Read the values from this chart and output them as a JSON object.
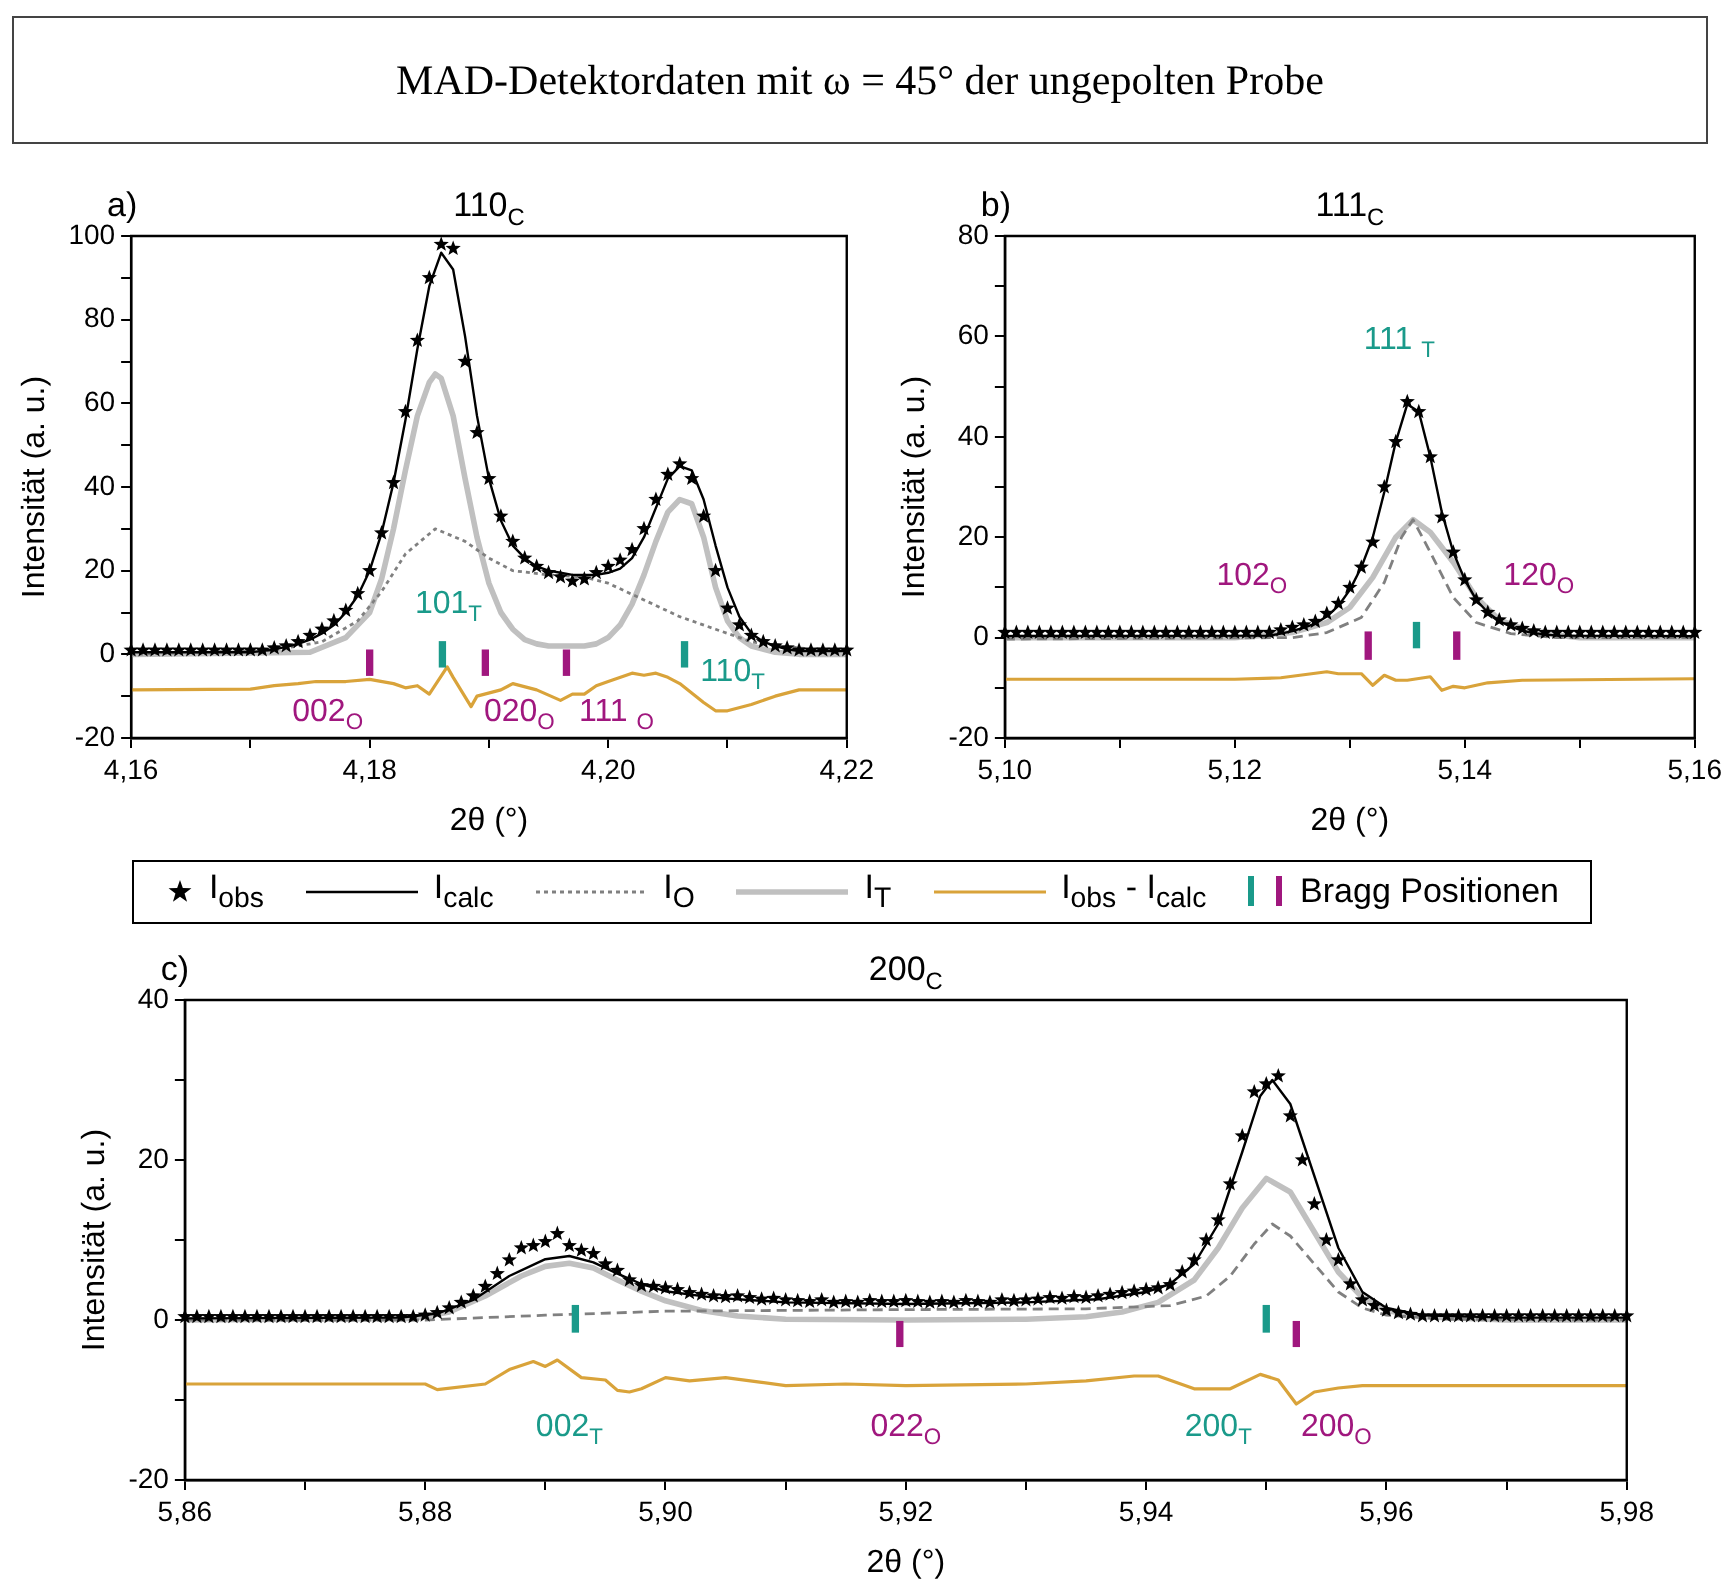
{
  "chart_data": [
    {
      "type": "line",
      "title": "MAD-Detektordaten mit ω = 45° der ungepolten Probe",
      "subtitle": "110$_{C}$",
      "xlabel": "2θ (°)",
      "ylabel": "Intensität (a. u.)",
      "legend": "bottom",
      "annotations": [
        "a)",
        {
          "text": "002$_{O}$",
          "x": 4.18,
          "y": -5
        },
        {
          "text": "101$_{T}$",
          "x": 4.1861,
          "y": -3
        },
        {
          "text": "020$_{O}$",
          "x": 4.1897,
          "y": -5
        },
        {
          "text": "111 $_{O}$",
          "x": 4.1965,
          "y": -5
        },
        {
          "text": "110$_{T}$",
          "x": 4.2064,
          "y": -3
        }
      ],
      "xlim": [
        4.16,
        4.22
      ],
      "ylim": [
        -20,
        100
      ],
      "xticks": [
        {
          "value": 4.16,
          "label": "4,16"
        },
        {
          "value": 4.17,
          "label": null
        },
        {
          "value": 4.18,
          "label": "4,18"
        },
        {
          "value": 4.19,
          "label": null
        },
        {
          "value": 4.2,
          "label": "4,20"
        },
        {
          "value": 4.21,
          "label": null
        },
        {
          "value": 4.22,
          "label": "4,22"
        }
      ],
      "yticks": [
        -20,
        {
          "value": -10,
          "label": null
        },
        0,
        {
          "value": 10,
          "label": null
        },
        20,
        {
          "value": 30,
          "label": null
        },
        40,
        {
          "value": 50,
          "label": null
        },
        60,
        {
          "value": 70,
          "label": null
        },
        80,
        {
          "value": 90,
          "label": null
        },
        100
      ],
      "series": [
        {
          "name": "I$_{obs}$",
          "type": "scatter",
          "marker": "star",
          "color": "#000000",
          "x": [
            4.16,
            4.161,
            4.162,
            4.163,
            4.164,
            4.165,
            4.166,
            4.167,
            4.168,
            4.169,
            4.17,
            4.171,
            4.172,
            4.173,
            4.174,
            4.175,
            4.176,
            4.177,
            4.178,
            4.179,
            4.18,
            4.181,
            4.182,
            4.183,
            4.184,
            4.185,
            4.186,
            4.187,
            4.188,
            4.189,
            4.19,
            4.191,
            4.192,
            4.193,
            4.194,
            4.195,
            4.196,
            4.197,
            4.198,
            4.199,
            4.2,
            4.201,
            4.202,
            4.203,
            4.204,
            4.205,
            4.206,
            4.207,
            4.208,
            4.209,
            4.21,
            4.211,
            4.212,
            4.213,
            4.214,
            4.215,
            4.216,
            4.217,
            4.218,
            4.219,
            4.22
          ],
          "values": [
            1,
            1,
            1,
            1,
            1,
            1,
            1,
            1,
            1,
            1,
            1,
            1,
            1.5,
            2,
            3,
            4.5,
            6,
            8,
            10.5,
            14.5,
            20,
            29,
            41,
            58,
            75,
            90,
            98,
            97,
            70,
            53,
            42,
            33,
            27,
            23,
            21,
            19.5,
            18.5,
            17.5,
            18,
            19.5,
            21,
            22.5,
            25,
            30,
            37,
            43,
            45.5,
            42,
            33,
            20,
            11,
            7,
            4.5,
            3,
            2,
            1.5,
            1,
            1,
            1,
            1,
            1
          ]
        },
        {
          "name": "I$_{calc}$",
          "line_style": "solid",
          "color": "#000000",
          "x": [
            4.16,
            4.17,
            4.171,
            4.172,
            4.173,
            4.174,
            4.175,
            4.176,
            4.177,
            4.178,
            4.179,
            4.18,
            4.181,
            4.182,
            4.183,
            4.184,
            4.185,
            4.186,
            4.187,
            4.188,
            4.189,
            4.19,
            4.191,
            4.192,
            4.193,
            4.194,
            4.195,
            4.196,
            4.197,
            4.198,
            4.199,
            4.2,
            4.201,
            4.202,
            4.203,
            4.204,
            4.205,
            4.206,
            4.207,
            4.208,
            4.209,
            4.21,
            4.211,
            4.212,
            4.213,
            4.214,
            4.215,
            4.216,
            4.22
          ],
          "values": [
            0.5,
            0.5,
            0.8,
            1.2,
            1.8,
            2.5,
            3.5,
            5,
            7,
            10,
            14,
            20,
            29,
            41,
            56,
            73,
            88,
            96,
            92,
            76,
            57,
            42,
            32,
            26,
            23,
            21,
            20,
            19.5,
            19,
            19,
            19,
            19.5,
            20.5,
            23,
            28,
            35,
            42,
            45,
            44,
            37,
            26,
            16,
            9,
            5,
            3,
            2,
            1.2,
            0.8,
            0.8
          ]
        },
        {
          "name": "I$_{O}$",
          "line_style": "dotted",
          "color": "#808080",
          "x": [
            4.16,
            4.172,
            4.176,
            4.179,
            4.181,
            4.183,
            4.1855,
            4.188,
            4.19,
            4.192,
            4.195,
            4.198,
            4.2,
            4.203,
            4.206,
            4.209,
            4.212,
            4.216,
            4.22
          ],
          "values": [
            0,
            1,
            3,
            8,
            15,
            24,
            30,
            27,
            23,
            20,
            19,
            18.5,
            17,
            13,
            9,
            6,
            3,
            1.5,
            1
          ]
        },
        {
          "name": "I$_{T}$",
          "line_style": "solid",
          "color": "#c0c0c0",
          "x": [
            4.16,
            4.175,
            4.178,
            4.18,
            4.181,
            4.182,
            4.183,
            4.184,
            4.185,
            4.1855,
            4.186,
            4.187,
            4.188,
            4.189,
            4.19,
            4.191,
            4.192,
            4.193,
            4.194,
            4.195,
            4.198,
            4.199,
            4.2,
            4.201,
            4.202,
            4.203,
            4.204,
            4.205,
            4.206,
            4.207,
            4.208,
            4.209,
            4.21,
            4.211,
            4.212,
            4.214,
            4.216,
            4.22
          ],
          "values": [
            0,
            0.5,
            4,
            10,
            18,
            30,
            44,
            57,
            65,
            67,
            66,
            57,
            42,
            28,
            17,
            10,
            6,
            3.5,
            2.5,
            2,
            2,
            2.5,
            4,
            7,
            12,
            19,
            27,
            34,
            37,
            36,
            28,
            16,
            8,
            4,
            2,
            0.5,
            0,
            0
          ]
        },
        {
          "name": "I$_{obs}$ - I$_{calc}$",
          "line_style": "solid",
          "color": "#d9a33a",
          "x": [
            4.16,
            4.17,
            4.172,
            4.174,
            4.1755,
            4.178,
            4.18,
            4.182,
            4.183,
            4.184,
            4.185,
            4.1865,
            4.187,
            4.1885,
            4.189,
            4.191,
            4.192,
            4.194,
            4.196,
            4.197,
            4.198,
            4.199,
            4.2,
            4.202,
            4.203,
            4.204,
            4.205,
            4.206,
            4.208,
            4.209,
            4.21,
            4.212,
            4.214,
            4.216,
            4.22
          ],
          "values": [
            -8.5,
            -8.3,
            -7.5,
            -7,
            -6.5,
            -6.5,
            -6,
            -7,
            -8,
            -7.5,
            -9.5,
            -3,
            -5.5,
            -12.5,
            -10,
            -8.5,
            -7,
            -8.5,
            -11,
            -9.5,
            -9.5,
            -7.5,
            -6.5,
            -4.5,
            -5,
            -4.5,
            -5.5,
            -7,
            -11.5,
            -13.5,
            -13.5,
            -12,
            -10,
            -8.5,
            -8.5
          ]
        },
        {
          "type": "bar",
          "color": "#1a9a8a",
          "x": [
            4.1861,
            4.2064
          ],
          "base": [
            -3,
            -3
          ],
          "values": [
            6,
            6
          ]
        },
        {
          "name": "Bragg Positionen",
          "type": "bar",
          "color": "#a0177e",
          "x": [
            4.18,
            4.1897,
            4.1965
          ],
          "base": [
            -5,
            -5,
            -5
          ],
          "values": [
            6,
            6,
            6
          ]
        }
      ]
    },
    {
      "type": "line",
      "subtitle": "111$_{C}$",
      "xlabel": "2θ (°)",
      "ylabel": "Intensität (a. u.)",
      "annotations": [
        "b)",
        "111 $_{T}$",
        "102$_{O}$",
        {
          "text": "120$_{O}$",
          "x": 5.1393,
          "y": -4.3
        }
      ],
      "xlim": [
        5.1,
        5.16
      ],
      "ylim": [
        -20,
        80
      ],
      "xticks": [
        {
          "value": 5.1,
          "label": "5,10"
        },
        {
          "value": 5.11,
          "label": null
        },
        {
          "value": 5.12,
          "label": "5,12"
        },
        {
          "value": 5.13,
          "label": null
        },
        {
          "value": 5.14,
          "label": "5,14"
        },
        {
          "value": 5.15,
          "label": null
        },
        {
          "value": 5.16,
          "label": "5,16"
        }
      ],
      "yticks": [
        -20,
        {
          "value": -10,
          "label": null
        },
        0,
        {
          "value": 10,
          "label": null
        },
        20,
        {
          "value": 30,
          "label": null
        },
        40,
        {
          "value": 50,
          "label": null
        },
        60,
        {
          "value": 70,
          "label": null
        },
        80
      ],
      "series": [
        {
          "type": "scatter",
          "marker": "star",
          "color": "#000000",
          "x": [
            5.1,
            5.101,
            5.102,
            5.103,
            5.104,
            5.105,
            5.106,
            5.107,
            5.108,
            5.109,
            5.11,
            5.111,
            5.112,
            5.113,
            5.114,
            5.115,
            5.116,
            5.117,
            5.118,
            5.119,
            5.12,
            5.121,
            5.122,
            5.123,
            5.124,
            5.125,
            5.126,
            5.127,
            5.128,
            5.129,
            5.13,
            5.131,
            5.132,
            5.133,
            5.134,
            5.135,
            5.136,
            5.137,
            5.138,
            5.139,
            5.14,
            5.141,
            5.142,
            5.143,
            5.144,
            5.145,
            5.146,
            5.147,
            5.148,
            5.149,
            5.15,
            5.151,
            5.152,
            5.153,
            5.154,
            5.155,
            5.156,
            5.157,
            5.158,
            5.159,
            5.16
          ],
          "values": [
            1,
            1,
            1,
            1,
            1,
            1,
            1,
            1,
            1,
            1,
            1,
            1,
            1,
            1,
            1,
            1,
            1,
            1,
            1,
            1,
            1,
            1,
            1,
            1,
            1.5,
            2,
            2.5,
            3.2,
            4.8,
            6.8,
            10,
            14,
            19,
            30,
            39,
            47,
            45,
            36,
            24,
            17,
            11.5,
            7.5,
            5,
            3.5,
            2.5,
            1.8,
            1.3,
            1,
            1,
            1,
            1,
            1,
            1,
            1,
            1,
            1,
            1,
            1,
            1,
            1,
            1
          ]
        },
        {
          "line_style": "solid",
          "color": "#000000",
          "x": [
            5.1,
            5.123,
            5.124,
            5.125,
            5.126,
            5.127,
            5.128,
            5.129,
            5.13,
            5.131,
            5.132,
            5.133,
            5.134,
            5.135,
            5.136,
            5.137,
            5.138,
            5.139,
            5.14,
            5.141,
            5.142,
            5.143,
            5.144,
            5.145,
            5.146,
            5.148,
            5.16
          ],
          "values": [
            0.3,
            0.4,
            0.8,
            1.3,
            2,
            2.8,
            4.2,
            6.3,
            9.5,
            14,
            20,
            29,
            39,
            46.5,
            45,
            36,
            25,
            17,
            11.5,
            7.5,
            5,
            3.3,
            2.2,
            1.4,
            0.9,
            0.4,
            0.3
          ]
        },
        {
          "line_style": "dashed",
          "color": "#808080",
          "x": [
            5.1,
            5.125,
            5.128,
            5.131,
            5.133,
            5.1345,
            5.1355,
            5.137,
            5.139,
            5.141,
            5.144,
            5.148,
            5.16
          ],
          "values": [
            -0.3,
            0,
            1,
            4,
            11,
            20,
            23.5,
            17,
            8,
            3,
            0.8,
            0,
            0
          ]
        },
        {
          "line_style": "solid",
          "color": "#c0c0c0",
          "x": [
            5.1,
            5.12,
            5.125,
            5.128,
            5.13,
            5.132,
            5.134,
            5.1355,
            5.137,
            5.139,
            5.141,
            5.143,
            5.146,
            5.15,
            5.16
          ],
          "values": [
            0,
            0,
            1,
            3,
            6,
            12,
            20,
            23.5,
            21,
            15,
            8,
            3.5,
            1,
            0,
            0
          ]
        },
        {
          "line_style": "solid",
          "color": "#d9a33a",
          "x": [
            5.1,
            5.12,
            5.124,
            5.128,
            5.129,
            5.131,
            5.132,
            5.133,
            5.134,
            5.135,
            5.137,
            5.138,
            5.139,
            5.14,
            5.142,
            5.145,
            5.16
          ],
          "values": [
            -8.3,
            -8.3,
            -8,
            -6.8,
            -7.2,
            -7.2,
            -9.5,
            -7.5,
            -8.5,
            -8.5,
            -7.8,
            -10.5,
            -9.7,
            -10,
            -9,
            -8.5,
            -8.2
          ]
        },
        {
          "type": "bar",
          "color": "#1a9a8a",
          "x": [
            5.1358
          ],
          "base": [
            -2
          ],
          "values": [
            5
          ]
        },
        {
          "type": "bar",
          "color": "#a0177e",
          "x": [
            5.1316,
            5.1393
          ],
          "base": [
            -4.3,
            -4.3
          ],
          "values": [
            5.4,
            5.4
          ]
        }
      ]
    },
    {
      "type": "line",
      "subtitle": "200$_{C}$",
      "xlabel": "2θ (°)",
      "ylabel": "Intensität (a. u.)",
      "annotations": [
        "c)",
        {
          "text": "002$_{T}$",
          "x": 5.8925,
          "y": -1.5
        },
        {
          "text": "022$_{O}$",
          "x": 5.9195,
          "y": -3.3
        },
        {
          "text": "200$_{T}$",
          "x": 5.95,
          "y": -1.5
        },
        {
          "text": "200$_{O}$",
          "x": 5.9525,
          "y": -3.3
        }
      ],
      "xlim": [
        5.86,
        5.98
      ],
      "ylim": [
        -20,
        40
      ],
      "xticks": [
        {
          "value": 5.86,
          "label": "5,86"
        },
        {
          "value": 5.87,
          "label": null
        },
        {
          "value": 5.88,
          "label": "5,88"
        },
        {
          "value": 5.89,
          "label": null
        },
        {
          "value": 5.9,
          "label": "5,90"
        },
        {
          "value": 5.91,
          "label": null
        },
        {
          "value": 5.92,
          "label": "5,92"
        },
        {
          "value": 5.93,
          "label": null
        },
        {
          "value": 5.94,
          "label": "5,94"
        },
        {
          "value": 5.95,
          "label": null
        },
        {
          "value": 5.96,
          "label": "5,96"
        },
        {
          "value": 5.97,
          "label": null
        },
        {
          "value": 5.98,
          "label": "5,98"
        }
      ],
      "yticks": [
        -20,
        {
          "value": -10,
          "label": null
        },
        0,
        {
          "value": 10,
          "label": null
        },
        20,
        {
          "value": 30,
          "label": null
        },
        40
      ],
      "series": [
        {
          "type": "scatter",
          "marker": "star",
          "color": "#000000",
          "x": [
            5.86,
            5.861,
            5.862,
            5.863,
            5.864,
            5.865,
            5.866,
            5.867,
            5.868,
            5.869,
            5.87,
            5.871,
            5.872,
            5.873,
            5.874,
            5.875,
            5.876,
            5.877,
            5.878,
            5.879,
            5.88,
            5.881,
            5.882,
            5.883,
            5.884,
            5.885,
            5.886,
            5.887,
            5.888,
            5.889,
            5.89,
            5.891,
            5.892,
            5.893,
            5.894,
            5.895,
            5.896,
            5.897,
            5.898,
            5.899,
            5.9,
            5.901,
            5.902,
            5.903,
            5.904,
            5.905,
            5.906,
            5.907,
            5.908,
            5.909,
            5.91,
            5.911,
            5.912,
            5.913,
            5.914,
            5.915,
            5.916,
            5.917,
            5.918,
            5.919,
            5.92,
            5.921,
            5.922,
            5.923,
            5.924,
            5.925,
            5.926,
            5.927,
            5.928,
            5.929,
            5.93,
            5.931,
            5.932,
            5.933,
            5.934,
            5.935,
            5.936,
            5.937,
            5.938,
            5.939,
            5.94,
            5.941,
            5.942,
            5.943,
            5.944,
            5.945,
            5.946,
            5.947,
            5.948,
            5.949,
            5.95,
            5.951,
            5.952,
            5.953,
            5.954,
            5.955,
            5.956,
            5.957,
            5.958,
            5.959,
            5.96,
            5.961,
            5.962,
            5.963,
            5.964,
            5.965,
            5.966,
            5.967,
            5.968,
            5.969,
            5.97,
            5.971,
            5.972,
            5.973,
            5.974,
            5.975,
            5.976,
            5.977,
            5.978,
            5.979,
            5.98
          ],
          "values": [
            0.4,
            0.4,
            0.4,
            0.4,
            0.4,
            0.4,
            0.4,
            0.4,
            0.4,
            0.4,
            0.4,
            0.4,
            0.4,
            0.4,
            0.4,
            0.4,
            0.4,
            0.4,
            0.4,
            0.4,
            0.6,
            0.9,
            1.5,
            2.2,
            3,
            4.2,
            5.8,
            7.5,
            9,
            9.3,
            9.8,
            10.8,
            9.3,
            8.7,
            8.3,
            7,
            6.2,
            5,
            4.3,
            4.2,
            4,
            3.8,
            3.4,
            3.2,
            3,
            2.9,
            3,
            2.8,
            2.6,
            2.7,
            2.5,
            2.4,
            2.3,
            2.5,
            2.2,
            2.3,
            2.2,
            2.4,
            2.3,
            2.3,
            2.4,
            2.3,
            2.2,
            2.3,
            2.2,
            2.4,
            2.3,
            2.2,
            2.5,
            2.4,
            2.5,
            2.6,
            2.8,
            2.7,
            2.9,
            2.8,
            3,
            3.2,
            3.4,
            3.6,
            3.8,
            4,
            4.4,
            6,
            7.5,
            10,
            12.5,
            17,
            23,
            28.5,
            29.5,
            30.5,
            25.5,
            20,
            14.5,
            10,
            7.5,
            4.5,
            2.5,
            1.8,
            1.2,
            0.9,
            0.7,
            0.5,
            0.5,
            0.5,
            0.5,
            0.5,
            0.5,
            0.5,
            0.5,
            0.5,
            0.5,
            0.5,
            0.5,
            0.5,
            0.5,
            0.5,
            0.5,
            0.5,
            0.5
          ]
        },
        {
          "line_style": "solid",
          "color": "#000000",
          "x": [
            5.86,
            5.878,
            5.881,
            5.884,
            5.887,
            5.89,
            5.892,
            5.894,
            5.896,
            5.898,
            5.9,
            5.904,
            5.91,
            5.92,
            5.93,
            5.936,
            5.94,
            5.942,
            5.944,
            5.946,
            5.948,
            5.9495,
            5.9505,
            5.952,
            5.954,
            5.956,
            5.958,
            5.96,
            5.963,
            5.97,
            5.98
          ],
          "values": [
            0.2,
            0.3,
            0.8,
            2.5,
            5.5,
            7.6,
            8,
            7.2,
            5.8,
            4.5,
            3.6,
            2.8,
            2.2,
            2,
            2.2,
            2.6,
            3.5,
            4.5,
            7,
            12,
            21,
            28,
            30,
            27,
            18,
            9,
            3.5,
            1.5,
            0.6,
            0.3,
            0.3
          ]
        },
        {
          "line_style": "dashed",
          "color": "#808080",
          "x": [
            5.86,
            5.88,
            5.89,
            5.9,
            5.92,
            5.935,
            5.942,
            5.945,
            5.947,
            5.949,
            5.9505,
            5.952,
            5.954,
            5.956,
            5.958,
            5.96,
            5.965,
            5.98
          ],
          "values": [
            0,
            0,
            0.6,
            1.1,
            1.3,
            1.4,
            1.8,
            3,
            5.5,
            9.5,
            12,
            10.5,
            7,
            3.5,
            1.5,
            0.6,
            0.1,
            0
          ]
        },
        {
          "line_style": "solid",
          "color": "#c0c0c0",
          "x": [
            5.86,
            5.879,
            5.882,
            5.885,
            5.888,
            5.89,
            5.892,
            5.894,
            5.896,
            5.898,
            5.9,
            5.903,
            5.906,
            5.91,
            5.92,
            5.93,
            5.935,
            5.938,
            5.941,
            5.944,
            5.946,
            5.948,
            5.95,
            5.952,
            5.954,
            5.956,
            5.958,
            5.96,
            5.963,
            5.97,
            5.98
          ],
          "values": [
            0,
            0.2,
            1,
            3,
            5.5,
            6.7,
            7.1,
            6.5,
            5,
            3.6,
            2.4,
            1.2,
            0.5,
            0.1,
            0,
            0.1,
            0.4,
            1,
            2.2,
            5,
            9,
            14,
            17.7,
            16,
            11,
            6,
            2.8,
            1.2,
            0.4,
            0,
            0
          ]
        },
        {
          "line_style": "solid",
          "color": "#d9a33a",
          "x": [
            5.86,
            5.88,
            5.881,
            5.885,
            5.887,
            5.889,
            5.89,
            5.891,
            5.893,
            5.895,
            5.896,
            5.897,
            5.898,
            5.9,
            5.902,
            5.905,
            5.908,
            5.91,
            5.915,
            5.92,
            5.93,
            5.935,
            5.939,
            5.941,
            5.944,
            5.947,
            5.9495,
            5.951,
            5.9525,
            5.954,
            5.956,
            5.958,
            5.98
          ],
          "values": [
            -8,
            -8,
            -8.7,
            -8,
            -6.2,
            -5.2,
            -5.8,
            -5,
            -7.2,
            -7.5,
            -8.8,
            -9,
            -8.6,
            -7.2,
            -7.6,
            -7.2,
            -7.8,
            -8.2,
            -8,
            -8.2,
            -8,
            -7.6,
            -7,
            -7,
            -8.6,
            -8.6,
            -6.8,
            -7.5,
            -10.5,
            -9,
            -8.5,
            -8.2,
            -8.2
          ]
        },
        {
          "type": "bar",
          "color": "#1a9a8a",
          "x": [
            5.8925,
            5.95
          ],
          "base": [
            -1.5,
            -1.5
          ],
          "values": [
            3.3,
            3.3
          ]
        },
        {
          "type": "bar",
          "color": "#a0177e",
          "x": [
            5.9195,
            5.9525
          ],
          "base": [
            -3.3,
            -3.3
          ],
          "values": [
            3.1,
            3.1
          ]
        }
      ]
    }
  ]
}
